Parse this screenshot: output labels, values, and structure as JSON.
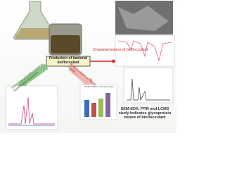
{
  "labels": {
    "production": "Production of bacterial bioflocculant",
    "characterization": "Characterization of bioflocculant",
    "utilization": "Utilization of bioflocculant in wastewater treatment",
    "heavy_metals": "Bioflocculation of heavy metals",
    "bar_chart_title": "Bioflocculation of heavy metals",
    "conclusion": "SEM-EDX, FTIR and LCMS study indicates glycoprotein nature of bioflocculant"
  }
}
